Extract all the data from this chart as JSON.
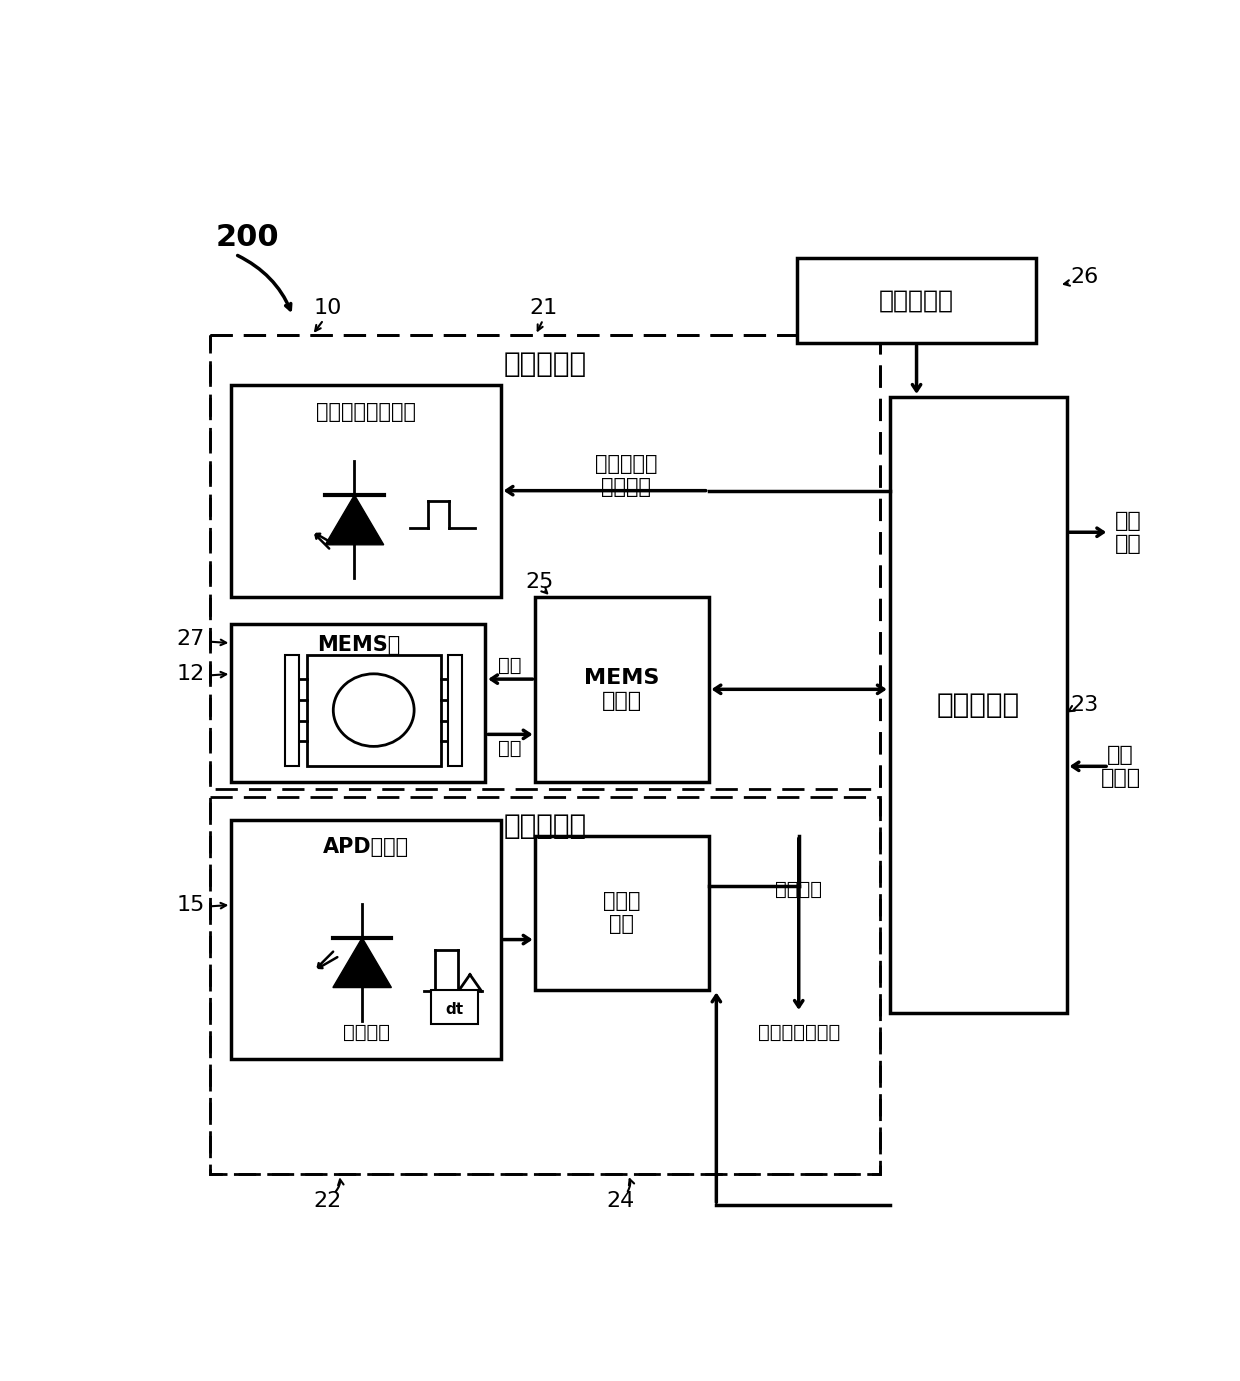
{
  "fig_width": 12.4,
  "fig_height": 13.81,
  "bg_color": "#ffffff",
  "label_200": "200",
  "label_10": "10",
  "label_21": "21",
  "label_22": "22",
  "label_23": "23",
  "label_24": "24",
  "label_25": "25",
  "label_26": "26",
  "label_27": "27",
  "label_12": "12",
  "label_15": "15",
  "text_transmitter": "发射器路径",
  "text_receiver": "接收器路径",
  "text_laser": "激光照射发射信号",
  "text_mems_mirror": "MEMS镜",
  "text_trigger_laser": "触发和激光\n功率设置",
  "text_actuate": "致动",
  "text_sense": "感测",
  "text_mems_driver": "MEMS\n驱动器",
  "text_system_controller": "系统控制器",
  "text_temp_sensor": "温度传感器",
  "text_point_cloud": "点云\n数据",
  "text_config": "配置\n和状态",
  "text_apd": "APD二极管",
  "text_reflected": "反射信号",
  "text_receiver_circuit": "接收器\n电路",
  "text_raw_data": "原始数据",
  "text_trigger_gain": "触发和增益设置"
}
